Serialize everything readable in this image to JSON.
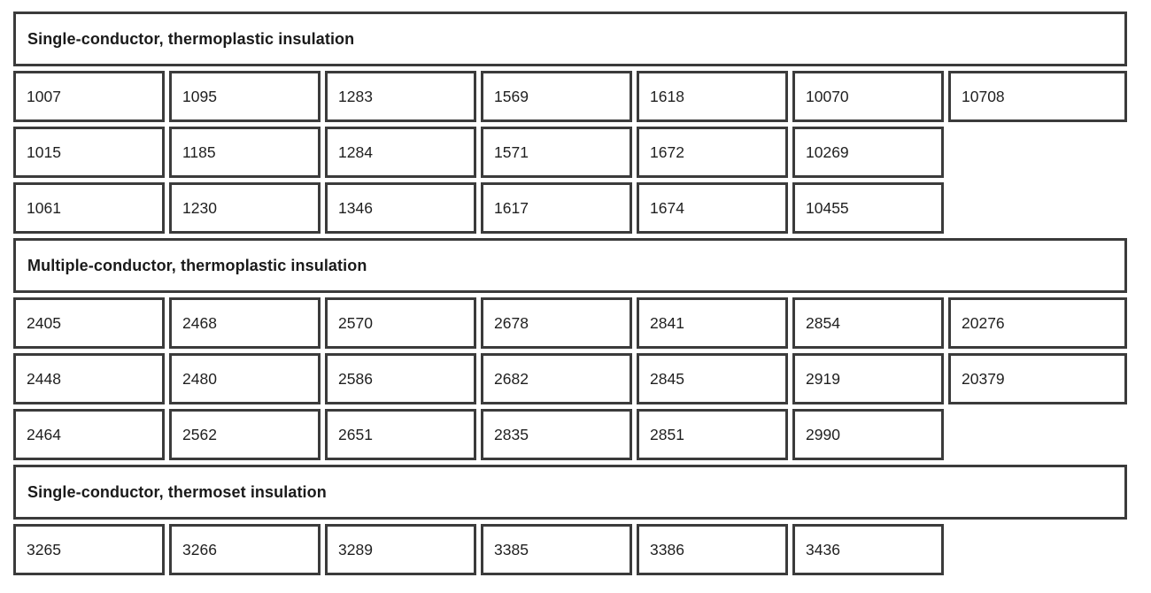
{
  "table": {
    "sections": [
      {
        "title": "Single-conductor, thermoplastic insulation",
        "rows": [
          [
            "1007",
            "1095",
            "1283",
            "1569",
            "1618",
            "10070",
            "10708"
          ],
          [
            "1015",
            "1185",
            "1284",
            "1571",
            "1672",
            "10269"
          ],
          [
            "1061",
            "1230",
            "1346",
            "1617",
            "1674",
            "10455"
          ]
        ]
      },
      {
        "title": "Multiple-conductor, thermoplastic insulation",
        "rows": [
          [
            "2405",
            "2468",
            "2570",
            "2678",
            "2841",
            "2854",
            "20276"
          ],
          [
            "2448",
            "2480",
            "2586",
            "2682",
            "2845",
            "2919",
            "20379"
          ],
          [
            "2464",
            "2562",
            "2651",
            "2835",
            "2851",
            "2990"
          ]
        ]
      },
      {
        "title": "Single-conductor, thermoset insulation",
        "rows": [
          [
            "3265",
            "3266",
            "3289",
            "3385",
            "3386",
            "3436"
          ]
        ]
      }
    ]
  },
  "colors": {
    "border": "#3b3b3b",
    "text": "#1f1f1f",
    "background": "#ffffff"
  }
}
